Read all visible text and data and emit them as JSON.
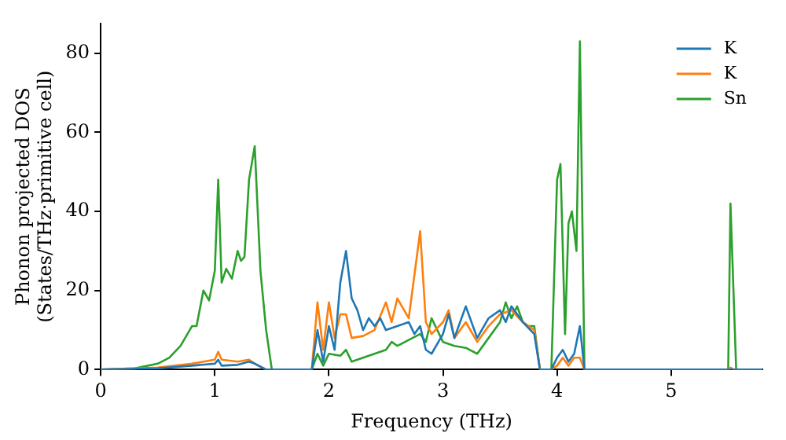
{
  "chart_data": {
    "type": "line",
    "xlabel": "Frequency (THz)",
    "ylabel": "Phonon projected DOS\n(States/THz·primitive cell)",
    "xlim": [
      0,
      5.8
    ],
    "ylim": [
      0,
      87.5
    ],
    "xticks": [
      0,
      1,
      2,
      3,
      4,
      5
    ],
    "yticks": [
      0,
      20,
      40,
      60,
      80
    ],
    "grid": false,
    "legend": "top right",
    "marker": "none",
    "line_style": "solid",
    "series": [
      {
        "name": "K",
        "color": "#1f77b4",
        "x": [
          0,
          0.5,
          0.8,
          1.0,
          1.03,
          1.06,
          1.2,
          1.3,
          1.35,
          1.45,
          1.85,
          1.9,
          1.95,
          2.0,
          2.05,
          2.1,
          2.15,
          2.2,
          2.25,
          2.3,
          2.35,
          2.4,
          2.45,
          2.5,
          2.6,
          2.7,
          2.75,
          2.8,
          2.85,
          2.9,
          3.0,
          3.05,
          3.1,
          3.2,
          3.3,
          3.4,
          3.5,
          3.55,
          3.6,
          3.7,
          3.8,
          3.85,
          3.95,
          4.0,
          4.05,
          4.1,
          4.15,
          4.2,
          4.24,
          5.8
        ],
        "values": [
          0,
          0.3,
          1,
          1.5,
          2.5,
          1,
          1.2,
          2,
          1.5,
          0,
          0,
          10,
          2,
          11,
          5,
          22,
          30,
          18,
          15,
          10,
          13,
          11,
          13,
          10,
          11,
          12,
          9,
          11,
          5,
          4,
          9,
          14,
          8,
          16,
          8,
          13,
          15,
          12,
          16,
          12,
          9,
          0,
          0,
          3,
          5,
          2,
          4,
          11,
          0,
          0
        ]
      },
      {
        "name": "K",
        "color": "#ff7f0e",
        "x": [
          0,
          0.5,
          0.8,
          1.0,
          1.03,
          1.06,
          1.2,
          1.3,
          1.35,
          1.45,
          1.85,
          1.9,
          1.95,
          2.0,
          2.05,
          2.1,
          2.15,
          2.2,
          2.3,
          2.4,
          2.5,
          2.55,
          2.6,
          2.7,
          2.8,
          2.85,
          2.9,
          3.0,
          3.05,
          3.1,
          3.2,
          3.3,
          3.4,
          3.5,
          3.6,
          3.7,
          3.8,
          3.85,
          3.95,
          4.0,
          4.05,
          4.1,
          4.15,
          4.2,
          4.24,
          5.5,
          5.52,
          5.55,
          5.8
        ],
        "values": [
          0,
          0.5,
          1.5,
          2.5,
          4.5,
          2.5,
          2,
          2.5,
          1.5,
          0,
          0,
          17,
          5,
          17,
          8,
          14,
          14,
          8,
          8.5,
          10,
          17,
          12,
          18,
          13,
          35,
          12,
          9,
          12,
          15,
          8,
          12,
          7,
          11,
          14,
          15,
          12,
          10,
          0,
          0,
          1,
          3,
          1,
          3,
          3,
          0,
          0,
          0.5,
          0,
          0
        ]
      },
      {
        "name": "Sn",
        "color": "#2ca02c",
        "x": [
          0,
          0.3,
          0.5,
          0.6,
          0.7,
          0.8,
          0.84,
          0.9,
          0.95,
          1.0,
          1.03,
          1.06,
          1.1,
          1.15,
          1.2,
          1.23,
          1.26,
          1.3,
          1.35,
          1.4,
          1.45,
          1.5,
          1.85,
          1.9,
          1.95,
          2.0,
          2.1,
          2.15,
          2.2,
          2.3,
          2.4,
          2.5,
          2.55,
          2.6,
          2.7,
          2.8,
          2.85,
          2.9,
          3.0,
          3.1,
          3.2,
          3.3,
          3.4,
          3.5,
          3.55,
          3.6,
          3.65,
          3.7,
          3.75,
          3.8,
          3.85,
          3.95,
          4.0,
          4.03,
          4.07,
          4.1,
          4.13,
          4.17,
          4.2,
          4.24,
          5.5,
          5.52,
          5.57,
          5.8
        ],
        "values": [
          0,
          0.3,
          1.5,
          3,
          6,
          11,
          11,
          20,
          17.5,
          25,
          48,
          22,
          25.5,
          23,
          30,
          27.5,
          28.5,
          48,
          56.5,
          25,
          10,
          0,
          0,
          4,
          1,
          4,
          3.5,
          5,
          2,
          3,
          4,
          5,
          7,
          6,
          7.5,
          9,
          7,
          13,
          7,
          6,
          5.5,
          4,
          8,
          12,
          17,
          13,
          16,
          12,
          11,
          11,
          0,
          0,
          48,
          52,
          9,
          37,
          40,
          30,
          83,
          0,
          0,
          42,
          0,
          0
        ]
      }
    ]
  }
}
